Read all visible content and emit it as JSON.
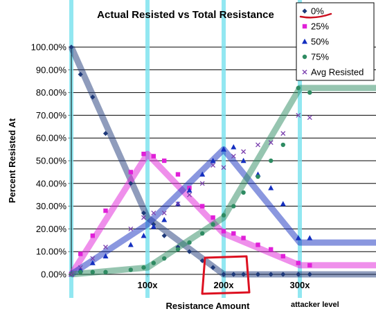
{
  "chart_data": {
    "type": "scatter",
    "title": "Actual Resisted vs Total Resistance",
    "xlabel": "Resistance Amount",
    "ylabel": "Percent Resisted At",
    "xlim": [
      0,
      400
    ],
    "ylim": [
      0,
      1
    ],
    "x_ticks": [
      {
        "value": 100,
        "label": "100x"
      },
      {
        "value": 200,
        "label": "200x"
      },
      {
        "value": 300,
        "label": "300x"
      }
    ],
    "y_ticks": [
      {
        "value": 0,
        "label": "0.00%"
      },
      {
        "value": 0.1,
        "label": "10.00%"
      },
      {
        "value": 0.2,
        "label": "20.00%"
      },
      {
        "value": 0.3,
        "label": "30.00%"
      },
      {
        "value": 0.4,
        "label": "40.00%"
      },
      {
        "value": 0.5,
        "label": "50.00%"
      },
      {
        "value": 0.6,
        "label": "60.00%"
      },
      {
        "value": 0.7,
        "label": "70.00%"
      },
      {
        "value": 0.8,
        "label": "80.00%"
      },
      {
        "value": 0.9,
        "label": "90.00%"
      },
      {
        "value": 1.0,
        "label": "100.00%"
      }
    ],
    "grid": true,
    "legend_position": "top-right",
    "annotation": "attacker level",
    "highlight_lines_x": [
      0,
      100,
      200,
      300
    ],
    "series": [
      {
        "name": "0%",
        "color": "#1F3A7A",
        "marker": "diamond",
        "trend": [
          [
            0,
            1.0
          ],
          [
            100,
            0.25
          ],
          [
            200,
            0.0
          ],
          [
            400,
            0.0
          ]
        ],
        "points": [
          [
            0,
            1.0
          ],
          [
            12,
            0.88
          ],
          [
            28,
            0.78
          ],
          [
            45,
            0.62
          ],
          [
            78,
            0.4
          ],
          [
            95,
            0.27
          ],
          [
            108,
            0.22
          ],
          [
            122,
            0.17
          ],
          [
            140,
            0.12
          ],
          [
            155,
            0.1
          ],
          [
            172,
            0.06
          ],
          [
            186,
            0.03
          ],
          [
            200,
            0.0
          ],
          [
            213,
            0.0
          ],
          [
            226,
            0.0
          ],
          [
            245,
            0.0
          ],
          [
            262,
            0.0
          ],
          [
            278,
            0.0
          ],
          [
            298,
            0.0
          ],
          [
            313,
            0.0
          ]
        ]
      },
      {
        "name": "25%",
        "color": "#E020D8",
        "marker": "square",
        "trend": [
          [
            0,
            0.0
          ],
          [
            100,
            0.53
          ],
          [
            200,
            0.18
          ],
          [
            300,
            0.04
          ],
          [
            400,
            0.04
          ]
        ],
        "points": [
          [
            0,
            0.0
          ],
          [
            12,
            0.09
          ],
          [
            28,
            0.17
          ],
          [
            45,
            0.28
          ],
          [
            78,
            0.45
          ],
          [
            95,
            0.53
          ],
          [
            108,
            0.52
          ],
          [
            122,
            0.5
          ],
          [
            140,
            0.44
          ],
          [
            155,
            0.38
          ],
          [
            172,
            0.3
          ],
          [
            186,
            0.25
          ],
          [
            200,
            0.19
          ],
          [
            213,
            0.18
          ],
          [
            226,
            0.16
          ],
          [
            245,
            0.13
          ],
          [
            262,
            0.11
          ],
          [
            278,
            0.08
          ],
          [
            298,
            0.05
          ],
          [
            313,
            0.04
          ]
        ]
      },
      {
        "name": "50%",
        "color": "#1530C0",
        "marker": "triangle",
        "trend": [
          [
            0,
            0.0
          ],
          [
            100,
            0.22
          ],
          [
            200,
            0.55
          ],
          [
            300,
            0.14
          ],
          [
            400,
            0.14
          ]
        ],
        "points": [
          [
            0,
            0.0
          ],
          [
            12,
            0.02
          ],
          [
            28,
            0.05
          ],
          [
            45,
            0.08
          ],
          [
            78,
            0.13
          ],
          [
            95,
            0.17
          ],
          [
            108,
            0.21
          ],
          [
            122,
            0.24
          ],
          [
            140,
            0.31
          ],
          [
            155,
            0.37
          ],
          [
            172,
            0.44
          ],
          [
            186,
            0.5
          ],
          [
            200,
            0.55
          ],
          [
            213,
            0.56
          ],
          [
            226,
            0.5
          ],
          [
            245,
            0.44
          ],
          [
            262,
            0.38
          ],
          [
            278,
            0.31
          ],
          [
            298,
            0.16
          ],
          [
            313,
            0.16
          ]
        ]
      },
      {
        "name": "75%",
        "color": "#2E8B62",
        "marker": "circle",
        "trend": [
          [
            0,
            0.0
          ],
          [
            100,
            0.03
          ],
          [
            200,
            0.25
          ],
          [
            300,
            0.82
          ],
          [
            400,
            0.82
          ]
        ],
        "points": [
          [
            0,
            0.0
          ],
          [
            12,
            0.01
          ],
          [
            28,
            0.01
          ],
          [
            45,
            0.01
          ],
          [
            78,
            0.02
          ],
          [
            95,
            0.03
          ],
          [
            108,
            0.05
          ],
          [
            122,
            0.07
          ],
          [
            140,
            0.11
          ],
          [
            155,
            0.14
          ],
          [
            172,
            0.18
          ],
          [
            186,
            0.22
          ],
          [
            200,
            0.26
          ],
          [
            213,
            0.3
          ],
          [
            226,
            0.36
          ],
          [
            245,
            0.43
          ],
          [
            262,
            0.5
          ],
          [
            278,
            0.57
          ],
          [
            298,
            0.82
          ],
          [
            313,
            0.8
          ]
        ]
      },
      {
        "name": "Avg Resisted",
        "color": "#7A3FAE",
        "marker": "x",
        "trend": [],
        "points": [
          [
            0,
            0.0
          ],
          [
            12,
            0.03
          ],
          [
            28,
            0.07
          ],
          [
            45,
            0.12
          ],
          [
            78,
            0.2
          ],
          [
            95,
            0.25
          ],
          [
            108,
            0.27
          ],
          [
            122,
            0.27
          ],
          [
            140,
            0.31
          ],
          [
            155,
            0.35
          ],
          [
            172,
            0.4
          ],
          [
            186,
            0.48
          ],
          [
            200,
            0.47
          ],
          [
            213,
            0.52
          ],
          [
            226,
            0.54
          ],
          [
            245,
            0.57
          ],
          [
            262,
            0.58
          ],
          [
            278,
            0.62
          ],
          [
            298,
            0.7
          ],
          [
            313,
            0.69
          ]
        ]
      }
    ]
  }
}
